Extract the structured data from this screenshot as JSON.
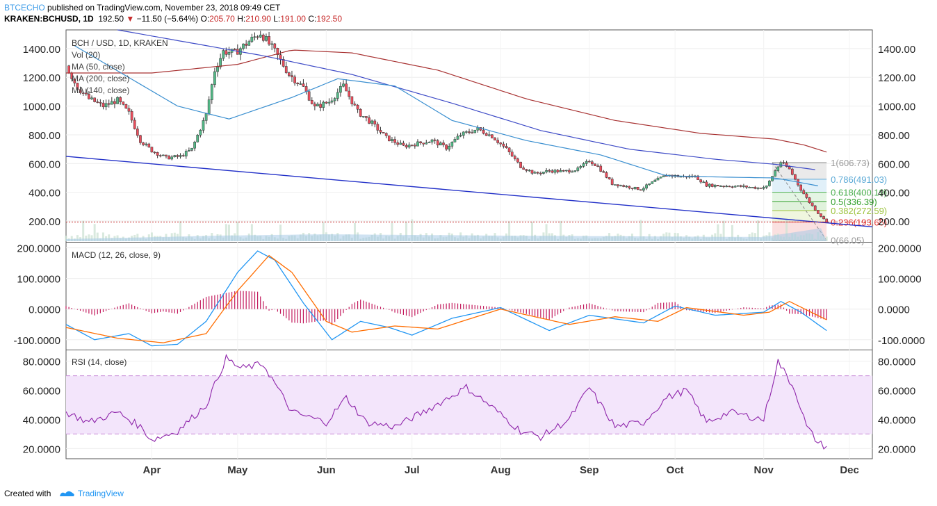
{
  "header": {
    "publisher": "BTCECHO",
    "published_text": "published on TradingView.com, November 23, 2018 09:49 CET",
    "symbol": "KRAKEN:BCHUSD, 1D",
    "last": "192.50",
    "change_arrow": "▼",
    "change": "−11.50 (−5.64%)",
    "open_label": "O:",
    "open": "205.70",
    "high_label": "H:",
    "high": "210.90",
    "low_label": "L:",
    "low": "191.00",
    "close_label": "C:",
    "close": "192.50"
  },
  "footer": {
    "created_with": "Created with",
    "brand": "TradingView"
  },
  "colors": {
    "bull": "#53b987",
    "bear": "#eb4d5c",
    "ma50": "#3a8fd0",
    "ma140": "#3f4cc7",
    "ma200": "#a83232",
    "trend": "#2230c8",
    "macd": "#2196f3",
    "signal": "#ff6d00",
    "hist": "#c2185b",
    "rsi": "#8e24aa",
    "rsi_band": "#f3e5fb"
  },
  "chart_data": [
    {
      "type": "candlestick",
      "title": "BCH / USD, 1D, KRAKEN",
      "indicators": [
        "Vol (20)",
        "MA (50, close)",
        "MA (200, close)",
        "MA (140, close)"
      ],
      "x_ticks": [
        "Apr",
        "May",
        "Jun",
        "Jul",
        "Aug",
        "Sep",
        "Oct",
        "Nov",
        "Dec"
      ],
      "x_range": [
        "2018-03-02",
        "2018-12-09"
      ],
      "ylim": [
        60,
        1530
      ],
      "y_ticks": [
        "1400.00",
        "1200.00",
        "1000.00",
        "800.00",
        "600.00",
        "400.00",
        "200.00"
      ],
      "price_anchors": [
        [
          "2018-03-02",
          1280
        ],
        [
          "2018-03-06",
          1130
        ],
        [
          "2018-03-10",
          1050
        ],
        [
          "2018-03-15",
          1000
        ],
        [
          "2018-03-20",
          1040
        ],
        [
          "2018-03-24",
          950
        ],
        [
          "2018-03-28",
          760
        ],
        [
          "2018-04-01",
          690
        ],
        [
          "2018-04-06",
          640
        ],
        [
          "2018-04-11",
          650
        ],
        [
          "2018-04-15",
          700
        ],
        [
          "2018-04-20",
          940
        ],
        [
          "2018-04-23",
          1250
        ],
        [
          "2018-04-26",
          1380
        ],
        [
          "2018-04-30",
          1370
        ],
        [
          "2018-05-05",
          1450
        ],
        [
          "2018-05-09",
          1510
        ],
        [
          "2018-05-14",
          1380
        ],
        [
          "2018-05-19",
          1220
        ],
        [
          "2018-05-24",
          1130
        ],
        [
          "2018-05-28",
          990
        ],
        [
          "2018-06-02",
          1030
        ],
        [
          "2018-06-07",
          1140
        ],
        [
          "2018-06-12",
          960
        ],
        [
          "2018-06-17",
          880
        ],
        [
          "2018-06-22",
          780
        ],
        [
          "2018-06-28",
          720
        ],
        [
          "2018-07-03",
          740
        ],
        [
          "2018-07-08",
          760
        ],
        [
          "2018-07-13",
          710
        ],
        [
          "2018-07-18",
          800
        ],
        [
          "2018-07-24",
          840
        ],
        [
          "2018-07-29",
          790
        ],
        [
          "2018-08-03",
          700
        ],
        [
          "2018-08-08",
          580
        ],
        [
          "2018-08-13",
          530
        ],
        [
          "2018-08-18",
          550
        ],
        [
          "2018-08-23",
          545
        ],
        [
          "2018-08-28",
          560
        ],
        [
          "2018-09-01",
          620
        ],
        [
          "2018-09-04",
          580
        ],
        [
          "2018-09-09",
          460
        ],
        [
          "2018-09-14",
          440
        ],
        [
          "2018-09-19",
          420
        ],
        [
          "2018-09-24",
          480
        ],
        [
          "2018-09-28",
          520
        ],
        [
          "2018-10-03",
          510
        ],
        [
          "2018-10-08",
          510
        ],
        [
          "2018-10-12",
          450
        ],
        [
          "2018-10-18",
          445
        ],
        [
          "2018-10-25",
          440
        ],
        [
          "2018-10-30",
          430
        ],
        [
          "2018-11-02",
          440
        ],
        [
          "2018-11-05",
          550
        ],
        [
          "2018-11-07",
          610
        ],
        [
          "2018-11-10",
          560
        ],
        [
          "2018-11-14",
          420
        ],
        [
          "2018-11-17",
          330
        ],
        [
          "2018-11-20",
          255
        ],
        [
          "2018-11-23",
          192.5
        ]
      ],
      "ma50": [
        [
          "2018-03-05",
          1420
        ],
        [
          "2018-04-10",
          1000
        ],
        [
          "2018-04-28",
          910
        ],
        [
          "2018-05-20",
          1060
        ],
        [
          "2018-06-05",
          1190
        ],
        [
          "2018-06-25",
          1140
        ],
        [
          "2018-07-15",
          900
        ],
        [
          "2018-08-10",
          760
        ],
        [
          "2018-09-05",
          660
        ],
        [
          "2018-09-28",
          515
        ],
        [
          "2018-10-20",
          505
        ],
        [
          "2018-11-05",
          500
        ],
        [
          "2018-11-20",
          445
        ]
      ],
      "ma140": [
        [
          "2018-03-20",
          1530
        ],
        [
          "2018-05-10",
          1350
        ],
        [
          "2018-06-10",
          1220
        ],
        [
          "2018-07-15",
          1020
        ],
        [
          "2018-08-15",
          830
        ],
        [
          "2018-09-15",
          700
        ],
        [
          "2018-10-15",
          630
        ],
        [
          "2018-11-05",
          595
        ],
        [
          "2018-11-20",
          555
        ]
      ],
      "ma200": [
        [
          "2018-03-02",
          1230
        ],
        [
          "2018-04-01",
          1230
        ],
        [
          "2018-05-01",
          1290
        ],
        [
          "2018-05-20",
          1390
        ],
        [
          "2018-06-10",
          1370
        ],
        [
          "2018-07-10",
          1250
        ],
        [
          "2018-08-10",
          1050
        ],
        [
          "2018-09-10",
          900
        ],
        [
          "2018-10-10",
          810
        ],
        [
          "2018-11-05",
          770
        ],
        [
          "2018-11-15",
          730
        ],
        [
          "2018-11-23",
          680
        ]
      ],
      "trendline": [
        [
          "2018-03-02",
          650
        ],
        [
          "2018-12-09",
          160
        ]
      ],
      "horizontal_line": 193.65,
      "fib_range": [
        "2018-11-04",
        "2018-11-23"
      ],
      "fib_levels": [
        {
          "label": "1(606.73)",
          "value": 606.73,
          "color": "#999999"
        },
        {
          "label": "0.786(491.03)",
          "value": 491.03,
          "color": "#5aa9d6"
        },
        {
          "label": "0.618(400.19)",
          "value": 400.19,
          "color": "#4caf50"
        },
        {
          "label": "0.5(336.39)",
          "value": 336.39,
          "color": "#33a02c"
        },
        {
          "label": "0.382(272.59)",
          "value": 272.59,
          "color": "#9bc23a"
        },
        {
          "label": "0.236(193.65)",
          "value": 193.65,
          "color": "#e53935"
        },
        {
          "label": "0(66.05)",
          "value": 66.05,
          "color": "#999999"
        }
      ]
    },
    {
      "type": "line",
      "title": "MACD (12, 26, close, 9)",
      "ylim": [
        -130,
        215
      ],
      "y_ticks": [
        "200.0000",
        "100.0000",
        "0.0000",
        "-100.0000"
      ],
      "series": [
        {
          "name": "MACD",
          "anchors": [
            [
              "2018-03-02",
              -50
            ],
            [
              "2018-03-12",
              -100
            ],
            [
              "2018-03-24",
              -80
            ],
            [
              "2018-04-01",
              -120
            ],
            [
              "2018-04-10",
              -115
            ],
            [
              "2018-04-20",
              -40
            ],
            [
              "2018-05-01",
              120
            ],
            [
              "2018-05-08",
              190
            ],
            [
              "2018-05-14",
              160
            ],
            [
              "2018-05-24",
              20
            ],
            [
              "2018-06-03",
              -100
            ],
            [
              "2018-06-13",
              -40
            ],
            [
              "2018-06-23",
              -60
            ],
            [
              "2018-07-01",
              -85
            ],
            [
              "2018-07-15",
              -30
            ],
            [
              "2018-08-01",
              5
            ],
            [
              "2018-08-18",
              -70
            ],
            [
              "2018-09-01",
              -20
            ],
            [
              "2018-09-20",
              -45
            ],
            [
              "2018-10-01",
              10
            ],
            [
              "2018-10-15",
              -20
            ],
            [
              "2018-11-01",
              -10
            ],
            [
              "2018-11-07",
              25
            ],
            [
              "2018-11-14",
              -10
            ],
            [
              "2018-11-23",
              -70
            ]
          ]
        },
        {
          "name": "Signal",
          "anchors": [
            [
              "2018-03-02",
              -60
            ],
            [
              "2018-03-20",
              -95
            ],
            [
              "2018-04-05",
              -110
            ],
            [
              "2018-04-20",
              -80
            ],
            [
              "2018-05-01",
              60
            ],
            [
              "2018-05-12",
              175
            ],
            [
              "2018-05-20",
              120
            ],
            [
              "2018-06-01",
              -40
            ],
            [
              "2018-06-10",
              -75
            ],
            [
              "2018-06-25",
              -55
            ],
            [
              "2018-07-10",
              -65
            ],
            [
              "2018-08-01",
              0
            ],
            [
              "2018-08-25",
              -50
            ],
            [
              "2018-09-10",
              -25
            ],
            [
              "2018-09-25",
              -40
            ],
            [
              "2018-10-05",
              5
            ],
            [
              "2018-10-25",
              -20
            ],
            [
              "2018-11-03",
              -10
            ],
            [
              "2018-11-10",
              25
            ],
            [
              "2018-11-23",
              -35
            ]
          ]
        }
      ]
    },
    {
      "type": "line",
      "title": "RSI (14, close)",
      "ylim": [
        13,
        87
      ],
      "y_ticks": [
        "80.0000",
        "60.0000",
        "40.0000",
        "20.0000"
      ],
      "band": [
        30,
        70
      ],
      "anchors": [
        [
          "2018-03-02",
          45
        ],
        [
          "2018-03-10",
          38
        ],
        [
          "2018-03-20",
          45
        ],
        [
          "2018-03-28",
          35
        ],
        [
          "2018-04-01",
          26
        ],
        [
          "2018-04-10",
          32
        ],
        [
          "2018-04-20",
          50
        ],
        [
          "2018-04-27",
          82
        ],
        [
          "2018-05-02",
          75
        ],
        [
          "2018-05-10",
          78
        ],
        [
          "2018-05-20",
          45
        ],
        [
          "2018-06-01",
          38
        ],
        [
          "2018-06-08",
          55
        ],
        [
          "2018-06-15",
          38
        ],
        [
          "2018-06-25",
          35
        ],
        [
          "2018-07-05",
          45
        ],
        [
          "2018-07-20",
          62
        ],
        [
          "2018-07-28",
          50
        ],
        [
          "2018-08-08",
          32
        ],
        [
          "2018-08-15",
          28
        ],
        [
          "2018-08-25",
          40
        ],
        [
          "2018-09-01",
          62
        ],
        [
          "2018-09-10",
          35
        ],
        [
          "2018-09-20",
          38
        ],
        [
          "2018-09-28",
          55
        ],
        [
          "2018-10-05",
          60
        ],
        [
          "2018-10-12",
          38
        ],
        [
          "2018-10-20",
          45
        ],
        [
          "2018-11-01",
          40
        ],
        [
          "2018-11-06",
          80
        ],
        [
          "2018-11-12",
          60
        ],
        [
          "2018-11-16",
          35
        ],
        [
          "2018-11-20",
          24
        ],
        [
          "2018-11-23",
          21
        ]
      ]
    }
  ]
}
